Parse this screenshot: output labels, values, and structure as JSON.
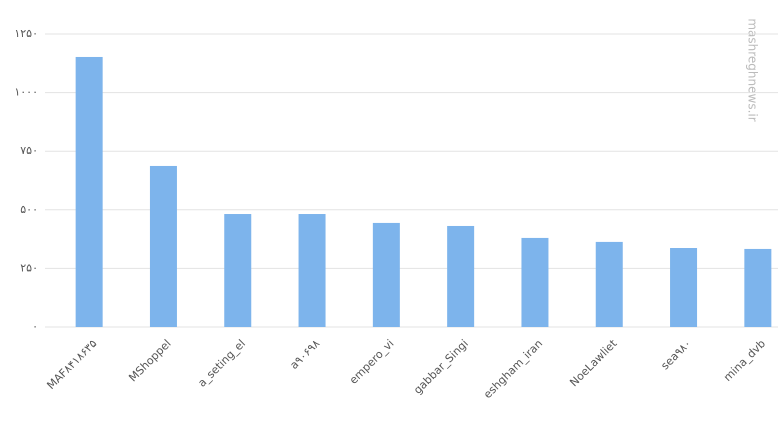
{
  "chart_data": {
    "type": "bar",
    "categories": [
      "MAF۸۴۱۸۶۳۵",
      "MShoppel",
      "a_seting_el",
      "a۹۰۶۹۸",
      "empero_vi",
      "gabbar_Singi",
      "eshgham_iran",
      "NoeLawliet",
      "sea۹۸۰",
      "mina_dvb"
    ],
    "values": [
      1152,
      687,
      482,
      482,
      444,
      431,
      380,
      363,
      337,
      333
    ],
    "color": "#7db4ec",
    "ylim": [
      0,
      1250
    ],
    "yticks": [
      {
        "value": 0,
        "label": "۰"
      },
      {
        "value": 250,
        "label": "۲۵۰"
      },
      {
        "value": 500,
        "label": "۵۰۰"
      },
      {
        "value": 750,
        "label": "۷۵۰"
      },
      {
        "value": 1000,
        "label": "۱۰۰۰"
      },
      {
        "value": 1250,
        "label": "۱۲۵۰"
      }
    ],
    "grid": true
  },
  "watermark": "mashreghnews.ir"
}
